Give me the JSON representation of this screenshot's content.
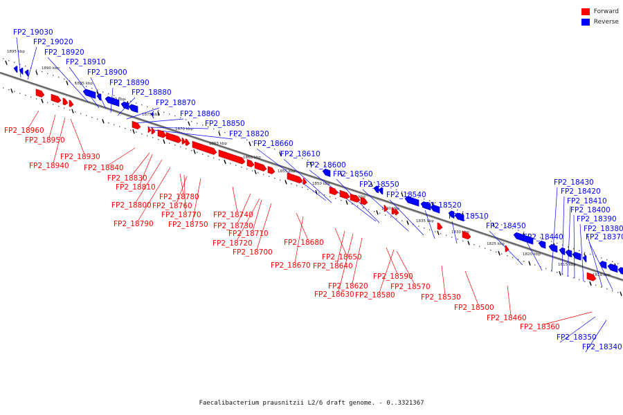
{
  "colors": {
    "forward": "#ff0000",
    "reverse": "#0000ff",
    "axis": "#666666"
  },
  "legend": {
    "forward_label": "Forward",
    "reverse_label": "Reverse"
  },
  "caption": "Faecalibacterium prausnitzii L2/6 draft genome. - 0..3321367",
  "kbp_labels": [
    "1895 kbp",
    "1890 kbp",
    "1885 kbp",
    "1880 kbp",
    "1875 kbp",
    "1870 kbp",
    "1865 kbp",
    "1860 kbp",
    "1855 kbp",
    "1850 kbp",
    "1845 kbp",
    "1840 kbp",
    "1835 kbp",
    "1830 kbp",
    "1825 kbp",
    "1820 kbp",
    "1815 kbp",
    "1810 kbp"
  ],
  "reverse_genes": [
    "FP2_19030",
    "FP2_19020",
    "FP2_18920",
    "FP2_18910",
    "FP2_18900",
    "FP2_18890",
    "FP2_18880",
    "FP2_18870",
    "FP2_18860",
    "FP2_18850",
    "FP2_18820",
    "FP2_18660",
    "FP2_18610",
    "FP2_18600",
    "FP2_18560",
    "FP2_18550",
    "FP2_18540",
    "FP2_18520",
    "FP2_18510",
    "FP2_18450",
    "FP2_18440",
    "FP2_18430",
    "FP2_18420",
    "FP2_18410",
    "FP2_18400",
    "FP2_18390",
    "FP2_18380",
    "FP2_18370",
    "FP2_18350",
    "FP2_18340"
  ],
  "forward_genes": [
    "FP2_18960",
    "FP2_18950",
    "FP2_18940",
    "FP2_18930",
    "FP2_18840",
    "FP2_18830",
    "FP2_18810",
    "FP2_18800",
    "FP2_18790",
    "FP2_18780",
    "FP2_18770",
    "FP2_18760",
    "FP2_18750",
    "FP2_18740",
    "FP2_18730",
    "FP2_18720",
    "FP2_18710",
    "FP2_18700",
    "FP2_18680",
    "FP2_18670",
    "FP2_18650",
    "FP2_18640",
    "FP2_18630",
    "FP2_18620",
    "FP2_18590",
    "FP2_18580",
    "FP2_18570",
    "FP2_18530",
    "FP2_18500",
    "FP2_18460",
    "FP2_18360"
  ]
}
